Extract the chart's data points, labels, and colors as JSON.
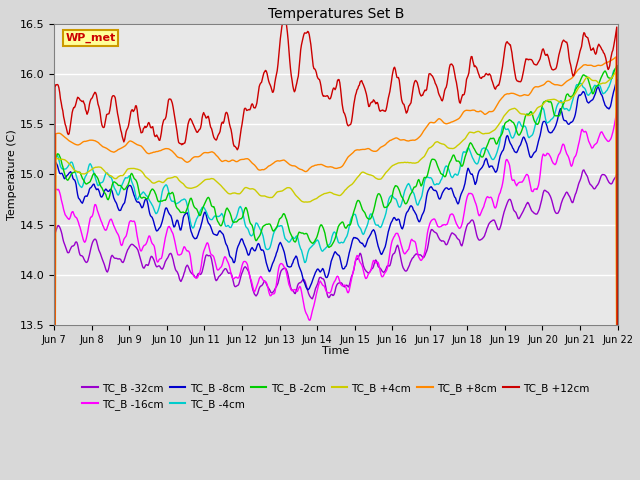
{
  "title": "Temperatures Set B",
  "xlabel": "Time",
  "ylabel": "Temperature (C)",
  "ylim": [
    13.5,
    16.5
  ],
  "xlim": [
    0,
    360
  ],
  "x_tick_labels": [
    "Jun 7",
    "Jun 8",
    "Jun 9",
    "Jun 10",
    "Jun 11",
    "Jun 12",
    "Jun 13",
    "Jun 14",
    "Jun 15",
    "Jun 16",
    "Jun 17",
    "Jun 18",
    "Jun 19",
    "Jun 20",
    "Jun 21",
    "Jun 22"
  ],
  "x_tick_positions": [
    0,
    24,
    48,
    72,
    96,
    120,
    144,
    168,
    192,
    216,
    240,
    264,
    288,
    312,
    336,
    360
  ],
  "series": [
    {
      "label": "TC_B -32cm",
      "color": "#9900cc"
    },
    {
      "label": "TC_B -16cm",
      "color": "#ff00ff"
    },
    {
      "label": "TC_B -8cm",
      "color": "#0000cc"
    },
    {
      "label": "TC_B -4cm",
      "color": "#00cccc"
    },
    {
      "label": "TC_B -2cm",
      "color": "#00cc00"
    },
    {
      "label": "TC_B +4cm",
      "color": "#cccc00"
    },
    {
      "label": "TC_B +8cm",
      "color": "#ff8800"
    },
    {
      "label": "TC_B +12cm",
      "color": "#cc0000"
    }
  ],
  "wp_met_box_color": "#ffff99",
  "wp_met_border_color": "#cc9900",
  "wp_met_text_color": "#cc0000",
  "plot_bg_color": "#e8e8e8",
  "grid_color": "#ffffff",
  "n_points": 721,
  "legend_row1": [
    "TC_B -32cm",
    "TC_B -16cm",
    "TC_B -8cm",
    "TC_B -4cm",
    "TC_B -2cm",
    "TC_B +4cm"
  ],
  "legend_row2": [
    "TC_B +8cm",
    "TC_B +12cm"
  ]
}
